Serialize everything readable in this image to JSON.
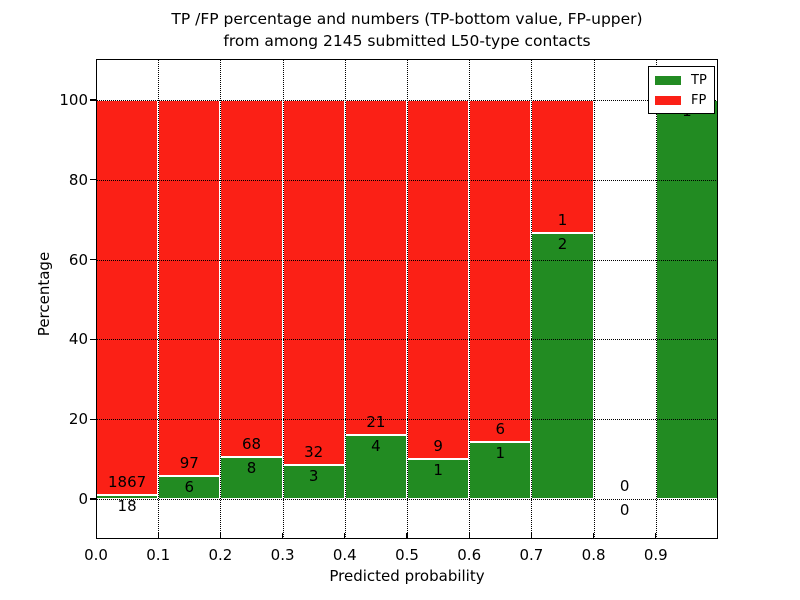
{
  "chart_data": {
    "type": "bar",
    "stacked": true,
    "title_line1": "TP /FP percentage and numbers (TP-bottom value, FP-upper)",
    "title_line2": "from among 2145 submitted L50-type contacts",
    "xlabel": "Predicted probability",
    "ylabel": "Percentage",
    "xlim": [
      0.0,
      1.0
    ],
    "ylim": [
      -10,
      110.5
    ],
    "xticks": [
      "0.0",
      "0.1",
      "0.2",
      "0.3",
      "0.4",
      "0.5",
      "0.6",
      "0.7",
      "0.8",
      "0.9"
    ],
    "yticks": [
      "0",
      "20",
      "40",
      "60",
      "80",
      "100"
    ],
    "grid": "dotted black, drawn above bars",
    "colors": {
      "tp": "#228b22",
      "fp": "#fb2016",
      "bar_edge": "#ffffff"
    },
    "legend": {
      "position": "upper right",
      "entries": [
        {
          "label": "TP",
          "color": "#228b22"
        },
        {
          "label": "FP",
          "color": "#fb2016"
        }
      ]
    },
    "bins": [
      {
        "range": [
          0.0,
          0.1
        ],
        "tp": 18,
        "fp": 1867
      },
      {
        "range": [
          0.1,
          0.2
        ],
        "tp": 6,
        "fp": 97
      },
      {
        "range": [
          0.2,
          0.3
        ],
        "tp": 8,
        "fp": 68
      },
      {
        "range": [
          0.3,
          0.4
        ],
        "tp": 3,
        "fp": 32
      },
      {
        "range": [
          0.4,
          0.5
        ],
        "tp": 4,
        "fp": 21
      },
      {
        "range": [
          0.5,
          0.6
        ],
        "tp": 1,
        "fp": 9
      },
      {
        "range": [
          0.6,
          0.7
        ],
        "tp": 1,
        "fp": 6
      },
      {
        "range": [
          0.7,
          0.8
        ],
        "tp": 2,
        "fp": 1
      },
      {
        "range": [
          0.8,
          0.9
        ],
        "tp": 0,
        "fp": 0
      },
      {
        "range": [
          0.9,
          1.0
        ],
        "tp": 1,
        "fp": 0
      }
    ]
  }
}
